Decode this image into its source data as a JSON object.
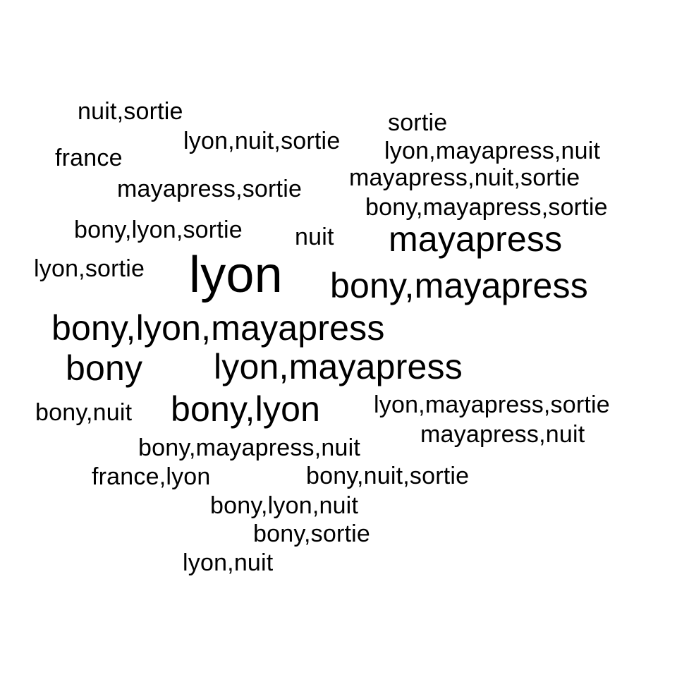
{
  "words": {
    "nuit_sortie": "nuit,sortie",
    "sortie": "sortie",
    "lyon_nuit_sortie": "lyon,nuit,sortie",
    "lyon_mayapress_nuit": "lyon,mayapress,nuit",
    "france": "france",
    "mayapress_nuit_sortie": "mayapress,nuit,sortie",
    "mayapress_sortie": "mayapress,sortie",
    "bony_mayapress_sortie": "bony,mayapress,sortie",
    "bony_lyon_sortie": "bony,lyon,sortie",
    "nuit": "nuit",
    "mayapress": "mayapress",
    "lyon_sortie": "lyon,sortie",
    "lyon": "lyon",
    "bony_mayapress": "bony,mayapress",
    "bony_lyon_mayapress": "bony,lyon,mayapress",
    "bony": "bony",
    "lyon_mayapress": "lyon,mayapress",
    "bony_nuit": "bony,nuit",
    "bony_lyon": "bony,lyon",
    "lyon_mayapress_sortie": "lyon,mayapress,sortie",
    "mayapress_nuit": "mayapress,nuit",
    "bony_mayapress_nuit": "bony,mayapress,nuit",
    "france_lyon": "france,lyon",
    "bony_nuit_sortie": "bony,nuit,sortie",
    "bony_lyon_nuit": "bony,lyon,nuit",
    "bony_sortie": "bony,sortie",
    "lyon_nuit": "lyon,nuit"
  },
  "colors": {
    "text": "#000000",
    "background": "#ffffff"
  }
}
